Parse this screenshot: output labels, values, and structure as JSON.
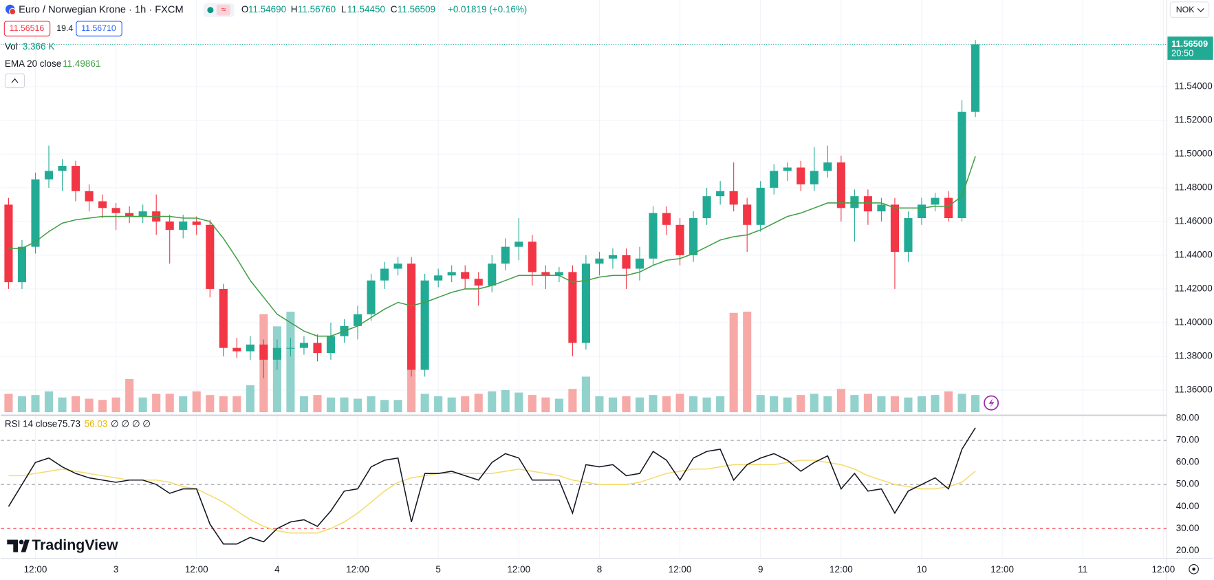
{
  "header": {
    "symbol": "Euro / Norwegian Krone · 1h · FXCM",
    "ohlc": [
      {
        "label": "O",
        "value": "11.54690"
      },
      {
        "label": "H",
        "value": "11.56760"
      },
      {
        "label": "L",
        "value": "11.54450"
      },
      {
        "label": "C",
        "value": "11.56509"
      }
    ],
    "change": "+0.01819 (+0.16%)",
    "sell": "11.56516",
    "spread": "19.4",
    "buy": "11.56710",
    "currency": "NOK",
    "logo": "TradingView"
  },
  "chart_data": [
    {
      "type": "candlestick",
      "up_color": "#22ab94",
      "down_color": "#f23645",
      "grid": true,
      "xlim": [
        -5.143,
        168.5
      ],
      "xticks": [
        {
          "value": 0,
          "label": "12:00"
        },
        {
          "value": 12,
          "label": "3"
        },
        {
          "value": 24,
          "label": "12:00"
        },
        {
          "value": 36,
          "label": "4"
        },
        {
          "value": 48,
          "label": "12:00"
        },
        {
          "value": 60,
          "label": "5"
        },
        {
          "value": 72,
          "label": "12:00"
        },
        {
          "value": 84,
          "label": "8"
        },
        {
          "value": 96,
          "label": "12:00"
        },
        {
          "value": 108,
          "label": "9"
        },
        {
          "value": 120,
          "label": "12:00"
        },
        {
          "value": 132,
          "label": "10"
        },
        {
          "value": 144,
          "label": "12:00"
        },
        {
          "value": 156,
          "label": "11"
        },
        {
          "value": 168,
          "label": "12:00"
        }
      ],
      "ylim": [
        11.34596,
        11.59138
      ],
      "yticks": [
        {
          "value": 11.36,
          "label": "11.36000"
        },
        {
          "value": 11.38,
          "label": "11.38000"
        },
        {
          "value": 11.4,
          "label": "11.40000"
        },
        {
          "value": 11.42,
          "label": "11.42000"
        },
        {
          "value": 11.44,
          "label": "11.44000"
        },
        {
          "value": 11.46,
          "label": "11.46000"
        },
        {
          "value": 11.48,
          "label": "11.48000"
        },
        {
          "value": 11.5,
          "label": "11.50000"
        },
        {
          "value": 11.52,
          "label": "11.52000"
        },
        {
          "value": 11.54,
          "label": "11.54000"
        }
      ],
      "x": [
        -4,
        -2,
        0,
        2,
        4,
        6,
        8,
        10,
        12,
        14,
        16,
        18,
        20,
        22,
        24,
        26,
        28,
        30,
        32,
        34,
        36,
        38,
        40,
        42,
        44,
        46,
        48,
        50,
        52,
        54,
        56,
        58,
        60,
        62,
        64,
        66,
        68,
        70,
        72,
        74,
        76,
        78,
        80,
        82,
        84,
        86,
        88,
        90,
        92,
        94,
        96,
        98,
        100,
        102,
        104,
        106,
        108,
        110,
        112,
        114,
        116,
        118,
        120,
        122,
        124,
        126,
        128,
        130,
        132,
        134,
        136,
        138,
        140
      ],
      "open": [
        11.47,
        11.424,
        11.445,
        11.485,
        11.49,
        11.493,
        11.478,
        11.472,
        11.468,
        11.465,
        11.463,
        11.466,
        11.46,
        11.455,
        11.46,
        11.458,
        11.42,
        11.385,
        11.383,
        11.387,
        11.378,
        11.385,
        11.385,
        11.388,
        11.382,
        11.392,
        11.398,
        11.405,
        11.425,
        11.432,
        11.435,
        11.372,
        11.425,
        11.428,
        11.43,
        11.426,
        11.422,
        11.435,
        11.445,
        11.448,
        11.43,
        11.428,
        11.43,
        11.388,
        11.435,
        11.438,
        11.44,
        11.432,
        11.438,
        11.465,
        11.458,
        11.44,
        11.462,
        11.475,
        11.478,
        11.47,
        11.458,
        11.48,
        11.49,
        11.492,
        11.482,
        11.49,
        11.495,
        11.468,
        11.475,
        11.466,
        11.47,
        11.442,
        11.462,
        11.47,
        11.474,
        11.462,
        11.525
      ],
      "high": [
        11.474,
        11.449,
        11.489,
        11.505,
        11.497,
        11.496,
        11.482,
        11.476,
        11.471,
        11.469,
        11.47,
        11.476,
        11.464,
        11.464,
        11.463,
        11.461,
        11.423,
        11.391,
        11.392,
        11.39,
        11.39,
        11.391,
        11.392,
        11.393,
        11.4,
        11.402,
        11.41,
        11.429,
        11.436,
        11.439,
        11.439,
        11.429,
        11.432,
        11.434,
        11.434,
        11.43,
        11.44,
        11.45,
        11.462,
        11.452,
        11.434,
        11.433,
        11.434,
        11.44,
        11.442,
        11.444,
        11.444,
        11.445,
        11.469,
        11.469,
        11.462,
        11.466,
        11.48,
        11.484,
        11.495,
        11.474,
        11.484,
        11.494,
        11.495,
        11.496,
        11.504,
        11.505,
        11.499,
        11.479,
        11.479,
        11.474,
        11.474,
        11.466,
        11.474,
        11.477,
        11.478,
        11.532,
        11.5676
      ],
      "low": [
        11.42,
        11.42,
        11.441,
        11.48,
        11.478,
        11.472,
        11.466,
        11.462,
        11.455,
        11.459,
        11.459,
        11.452,
        11.435,
        11.45,
        11.452,
        11.415,
        11.38,
        11.379,
        11.378,
        11.367,
        11.372,
        11.38,
        11.381,
        11.377,
        11.378,
        11.388,
        11.39,
        11.401,
        11.42,
        11.428,
        11.368,
        11.368,
        11.421,
        11.424,
        11.42,
        11.41,
        11.418,
        11.431,
        11.437,
        11.422,
        11.42,
        11.424,
        11.38,
        11.384,
        11.428,
        11.432,
        11.42,
        11.425,
        11.434,
        11.452,
        11.434,
        11.436,
        11.458,
        11.47,
        11.466,
        11.442,
        11.454,
        11.476,
        11.484,
        11.478,
        11.478,
        11.486,
        11.46,
        11.448,
        11.458,
        11.46,
        11.42,
        11.436,
        11.458,
        11.466,
        11.46,
        11.46,
        11.522
      ],
      "close": [
        11.424,
        11.445,
        11.485,
        11.49,
        11.493,
        11.478,
        11.472,
        11.468,
        11.465,
        11.463,
        11.466,
        11.46,
        11.455,
        11.46,
        11.458,
        11.42,
        11.385,
        11.383,
        11.387,
        11.378,
        11.385,
        11.385,
        11.388,
        11.382,
        11.392,
        11.398,
        11.405,
        11.425,
        11.432,
        11.435,
        11.372,
        11.425,
        11.428,
        11.43,
        11.426,
        11.422,
        11.435,
        11.445,
        11.448,
        11.43,
        11.428,
        11.43,
        11.388,
        11.435,
        11.438,
        11.44,
        11.432,
        11.438,
        11.465,
        11.458,
        11.44,
        11.462,
        11.475,
        11.478,
        11.47,
        11.458,
        11.48,
        11.49,
        11.492,
        11.482,
        11.49,
        11.495,
        11.468,
        11.475,
        11.466,
        11.47,
        11.442,
        11.462,
        11.47,
        11.474,
        11.462,
        11.525,
        11.56509
      ],
      "volume": {
        "name": "Vol",
        "value_label": "3.366 K",
        "up_color": "#92d2cc",
        "down_color": "#f7a9a7",
        "values": [
          1500,
          1300,
          1400,
          1700,
          1200,
          1300,
          1100,
          1000,
          1200,
          2700,
          1200,
          1500,
          1500,
          1300,
          1700,
          1400,
          1300,
          1300,
          2200,
          8000,
          7000,
          8200,
          1300,
          1400,
          1200,
          1200,
          1100,
          1300,
          1000,
          1000,
          6100,
          1500,
          1300,
          1200,
          1300,
          1500,
          1700,
          1800,
          1600,
          1400,
          1200,
          1100,
          1900,
          2900,
          1300,
          1200,
          1300,
          1200,
          1400,
          1300,
          1500,
          1300,
          1200,
          1300,
          8100,
          8200,
          1400,
          1300,
          1200,
          1400,
          1500,
          1300,
          1900,
          1400,
          1500,
          1300,
          1300,
          1200,
          1300,
          1400,
          1700,
          1500,
          1400
        ]
      },
      "ema": {
        "name": "EMA 20 close",
        "value_label": "11.49861",
        "color": "#43a047",
        "values": [
          11.444,
          11.444,
          11.448,
          11.454,
          11.459,
          11.461,
          11.462,
          11.463,
          11.463,
          11.463,
          11.463,
          11.463,
          11.463,
          11.462,
          11.462,
          11.46,
          11.45,
          11.438,
          11.425,
          11.415,
          11.405,
          11.4,
          11.395,
          11.392,
          11.392,
          11.395,
          11.398,
          11.403,
          11.408,
          11.412,
          11.41,
          11.412,
          11.415,
          11.418,
          11.42,
          11.42,
          11.422,
          11.425,
          11.428,
          11.428,
          11.428,
          11.428,
          11.424,
          11.425,
          11.427,
          11.428,
          11.428,
          11.43,
          11.434,
          11.437,
          11.438,
          11.441,
          11.445,
          11.449,
          11.451,
          11.452,
          11.455,
          11.459,
          11.463,
          11.465,
          11.468,
          11.471,
          11.471,
          11.471,
          11.471,
          11.471,
          11.468,
          11.468,
          11.468,
          11.469,
          11.469,
          11.475,
          11.49861
        ]
      },
      "last_price": {
        "value": 11.56509,
        "label": "11.56509",
        "time": "20:50",
        "color": "#22ab94"
      }
    },
    {
      "type": "line",
      "title": "RSI 14 close",
      "placeholders": "∅ ∅ ∅ ∅",
      "ylim": [
        16.49,
        81.4
      ],
      "yticks": [
        {
          "value": 20,
          "label": "20.00"
        },
        {
          "value": 30,
          "label": "30.00"
        },
        {
          "value": 40,
          "label": "40.00"
        },
        {
          "value": 50,
          "label": "50.00"
        },
        {
          "value": 60,
          "label": "60.00"
        },
        {
          "value": 70,
          "label": "70.00"
        },
        {
          "value": 80,
          "label": "80.00"
        }
      ],
      "levels": [
        70,
        50,
        30
      ],
      "level_colors": [
        "#9598a1",
        "#9598a1",
        "#f23645"
      ],
      "x": [
        -4,
        -2,
        0,
        2,
        4,
        6,
        8,
        10,
        12,
        14,
        16,
        18,
        20,
        22,
        24,
        26,
        28,
        30,
        32,
        34,
        36,
        38,
        40,
        42,
        44,
        46,
        48,
        50,
        52,
        54,
        56,
        58,
        60,
        62,
        64,
        66,
        68,
        70,
        72,
        74,
        76,
        78,
        80,
        82,
        84,
        86,
        88,
        90,
        92,
        94,
        96,
        98,
        100,
        102,
        104,
        106,
        108,
        110,
        112,
        114,
        116,
        118,
        120,
        122,
        124,
        126,
        128,
        130,
        132,
        134,
        136,
        138,
        140
      ],
      "series": [
        {
          "value_label": "75.73",
          "color": "#131722",
          "values": [
            40,
            50,
            60,
            62,
            58,
            55,
            53,
            52,
            51,
            52,
            52,
            50,
            46,
            48,
            48,
            32,
            23,
            23,
            26,
            24,
            30,
            33,
            34,
            31,
            38,
            47,
            48,
            58,
            61,
            62,
            33,
            55,
            55,
            56,
            54,
            52,
            60,
            64,
            62,
            52,
            52,
            52,
            37,
            59,
            58,
            59,
            54,
            55,
            65,
            61,
            52,
            62,
            65,
            66,
            52,
            59,
            62,
            64,
            61,
            56,
            60,
            63,
            48,
            55,
            47,
            48,
            37,
            47,
            50,
            53,
            48,
            66,
            75.73
          ]
        },
        {
          "value_label": "56.03",
          "color": "#f5dc6e",
          "values": [
            54,
            54,
            55,
            56,
            57,
            56,
            55,
            54,
            53,
            52,
            52,
            52,
            51,
            49,
            48,
            45,
            42,
            38,
            34,
            31,
            29,
            28,
            28,
            28,
            30,
            33,
            37,
            42,
            47,
            51,
            53,
            54,
            55,
            55,
            55,
            55,
            55,
            56,
            57,
            56,
            55,
            54,
            52,
            51,
            50,
            50,
            50,
            51,
            53,
            55,
            56,
            57,
            57,
            58,
            59,
            59,
            59,
            59,
            60,
            61,
            61,
            60,
            59,
            57,
            54,
            52,
            50,
            49,
            48,
            48,
            49,
            51,
            56.03
          ]
        }
      ]
    }
  ]
}
